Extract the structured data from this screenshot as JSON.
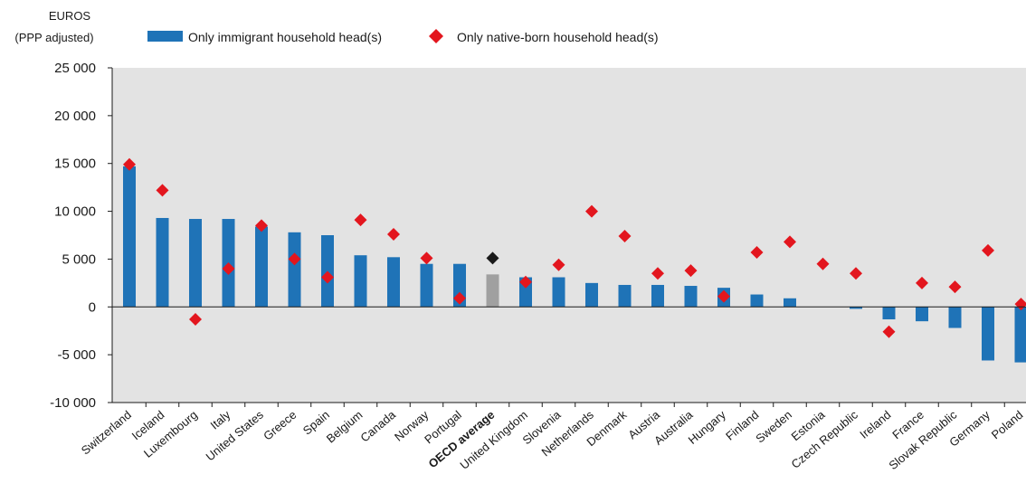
{
  "unit_label": [
    "EUROS",
    "(PPP adjusted)"
  ],
  "legend": {
    "immigrant": "Only immigrant household head(s)",
    "native": "Only native-born household head(s)"
  },
  "colors": {
    "immigrant": "#1f73b7",
    "native": "#e3161e",
    "average_bar": "#a0a0a0",
    "average_marker": "#1a1a1a",
    "plot_bg": "#e3e3e3",
    "axis": "#1a1a1a"
  },
  "chart_data": {
    "type": "bar",
    "ylim": [
      -10000,
      25000
    ],
    "yticks": [
      {
        "value": -10000,
        "label": "-10 000"
      },
      {
        "value": -5000,
        "label": "-5 000"
      },
      {
        "value": 0,
        "label": "0"
      },
      {
        "value": 5000,
        "label": "5 000"
      },
      {
        "value": 10000,
        "label": "10 000"
      },
      {
        "value": 15000,
        "label": "15 000"
      },
      {
        "value": 20000,
        "label": "20 000"
      },
      {
        "value": 25000,
        "label": "25 000"
      }
    ],
    "grid": false,
    "legend_position": "top",
    "categories": [
      "Switzerland",
      "Iceland",
      "Luxembourg",
      "Italy",
      "United States",
      "Greece",
      "Spain",
      "Belgium",
      "Canada",
      "Norway",
      "Portugal",
      "OECD average",
      "United Kingdom",
      "Slovenia",
      "Netherlands",
      "Denmark",
      "Austria",
      "Australia",
      "Hungary",
      "Finland",
      "Sweden",
      "Estonia",
      "Czech Republic",
      "Ireland",
      "France",
      "Slovak Republic",
      "Germany",
      "Poland"
    ],
    "highlight_category": "OECD average",
    "series": [
      {
        "name": "Only immigrant household head(s)",
        "kind": "bar",
        "values": [
          14700,
          9300,
          9200,
          9200,
          8400,
          7800,
          7500,
          5400,
          5200,
          4500,
          4500,
          3400,
          3100,
          3100,
          2500,
          2300,
          2300,
          2200,
          2000,
          1300,
          900,
          null,
          -200,
          -1300,
          -1500,
          -2200,
          -5600,
          -5800
        ]
      },
      {
        "name": "Only native-born household head(s)",
        "kind": "marker",
        "values": [
          14900,
          12200,
          -1300,
          4000,
          8500,
          5000,
          3100,
          9100,
          7600,
          5100,
          900,
          5100,
          2600,
          4400,
          10000,
          7400,
          3500,
          3800,
          1100,
          5700,
          6800,
          4500,
          3500,
          -2600,
          2500,
          2100,
          5900,
          300
        ]
      }
    ]
  }
}
